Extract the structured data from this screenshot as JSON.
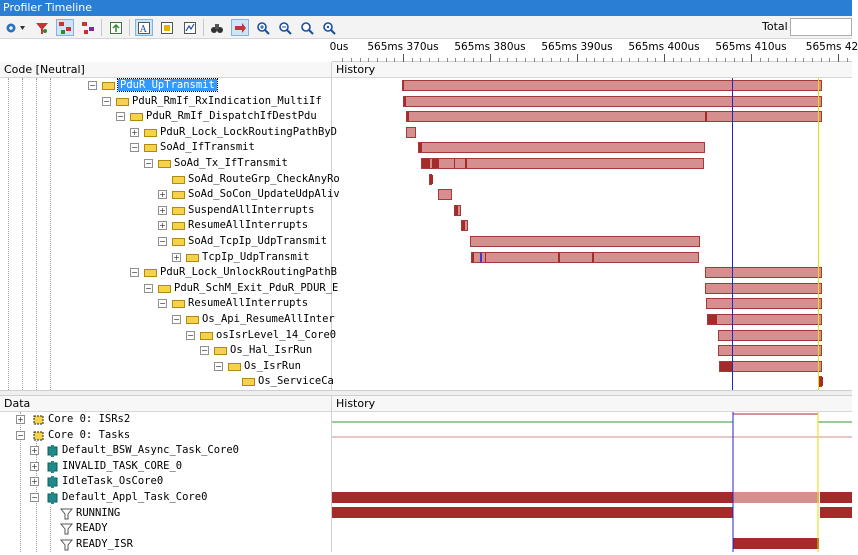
{
  "window": {
    "title": "Profiler Timeline"
  },
  "toolbar": {
    "icons": [
      "gear-icon",
      "filter-icon",
      "tree-icon",
      "tree-alt-icon",
      "export-icon",
      "text-view-icon",
      "table-view-icon",
      "graph-icon",
      "binoculars-icon",
      "pin-icon",
      "zoom-in-icon",
      "zoom-out-icon",
      "zoom-fit-icon",
      "zoom-reset-icon"
    ],
    "total_label": "Total",
    "total_value": ""
  },
  "ruler": {
    "labels": [
      "0us",
      "565ms 370us",
      "565ms 380us",
      "565ms 390us",
      "565ms 400us",
      "565ms 410us",
      "565ms 42"
    ]
  },
  "code_pane": {
    "header": "Code [Neutral]",
    "history_header": "History",
    "rows": [
      {
        "label": "PduR_UpTransmit",
        "selected": true,
        "expander": "−"
      },
      {
        "label": "PduR_RmIf_RxIndication_MultiIf",
        "expander": "−"
      },
      {
        "label": "PduR_RmIf_DispatchIfDestPdu",
        "expander": "−"
      },
      {
        "label": "PduR_Lock_LockRoutingPathByD",
        "expander": "+"
      },
      {
        "label": "SoAd_IfTransmit",
        "expander": "−"
      },
      {
        "label": "SoAd_Tx_IfTransmit",
        "expander": "−"
      },
      {
        "label": "SoAd_RouteGrp_CheckAnyRo",
        "expander": ""
      },
      {
        "label": "SoAd_SoCon_UpdateUdpAliv",
        "expander": "+"
      },
      {
        "label": "SuspendAllInterrupts",
        "expander": "+"
      },
      {
        "label": "ResumeAllInterrupts",
        "expander": "+"
      },
      {
        "label": "SoAd_TcpIp_UdpTransmit",
        "expander": "−"
      },
      {
        "label": "TcpIp_UdpTransmit",
        "expander": "+"
      },
      {
        "label": "PduR_Lock_UnlockRoutingPathB",
        "expander": "−"
      },
      {
        "label": "PduR_SchM_Exit_PduR_PDUR_E",
        "expander": "−"
      },
      {
        "label": "ResumeAllInterrupts",
        "expander": "−"
      },
      {
        "label": "Os_Api_ResumeAllInter",
        "expander": "−"
      },
      {
        "label": "osIsrLevel_14_Core0",
        "expander": "−"
      },
      {
        "label": "Os_Hal_IsrRun",
        "expander": "−"
      },
      {
        "label": "Os_IsrRun",
        "expander": "−"
      },
      {
        "label": "Os_ServiceCa",
        "expander": ""
      }
    ]
  },
  "data_pane": {
    "header": "Data",
    "history_header": "History",
    "rows": [
      {
        "label": "Core 0: ISRs2",
        "expander": "+",
        "icon": "core-icon"
      },
      {
        "label": "Core 0: Tasks",
        "expander": "−",
        "icon": "core-icon"
      },
      {
        "label": "Default_BSW_Async_Task_Core0",
        "expander": "+",
        "icon": "task-icon"
      },
      {
        "label": "INVALID_TASK_CORE_0",
        "expander": "+",
        "icon": "task-icon"
      },
      {
        "label": "IdleTask_OsCore0",
        "expander": "+",
        "icon": "task-icon"
      },
      {
        "label": "Default_Appl_Task_Core0",
        "expander": "−",
        "icon": "task-icon"
      },
      {
        "label": "RUNNING",
        "expander": "",
        "icon": "state-filter-icon"
      },
      {
        "label": "READY",
        "expander": "",
        "icon": "state-filter-icon"
      },
      {
        "label": "READY_ISR",
        "expander": "",
        "icon": "state-filter-icon"
      }
    ]
  },
  "colors": {
    "bar_fill": "#d68f8f",
    "bar_dark": "#a52a2a",
    "cursor_blue": "#2323d0",
    "cursor_yellow": "#e8e000",
    "titlebar": "#2a7fd4",
    "green_line": "#2f9a2f"
  }
}
